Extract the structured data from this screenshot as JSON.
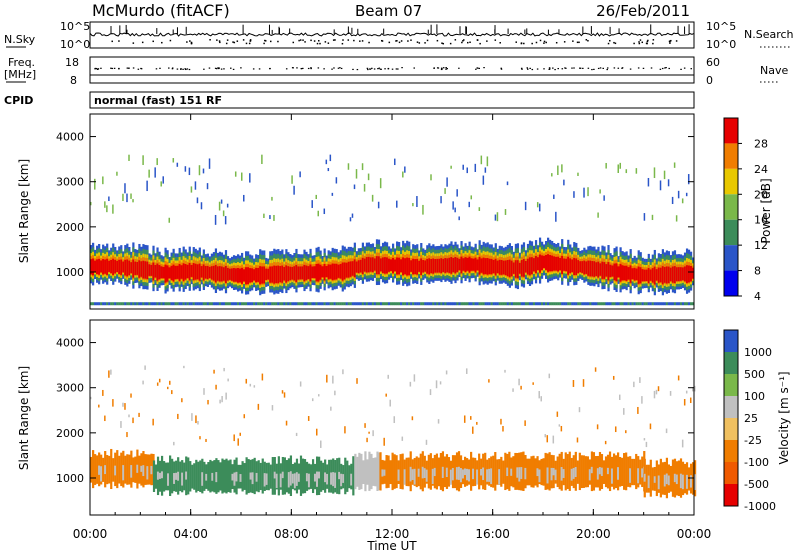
{
  "header": {
    "station": "McMurdo (fitACF)",
    "beam": "Beam 07",
    "date": "26/Feb/2011"
  },
  "top_panels": {
    "nsky_label": "N.Sky",
    "nsearch_label": "N.Search",
    "nsky_ticks": [
      "10^5",
      "10^0"
    ],
    "nsearch_ticks": [
      "10^5",
      "10^0"
    ],
    "freq_label_1": "Freq.",
    "freq_label_2": "[MHz]",
    "freq_ticks": [
      "18",
      "8"
    ],
    "nave_label": "Nave",
    "nave_ticks": [
      "60",
      "0"
    ],
    "cpid_label": "CPID",
    "cpid_value": "normal (fast) 151 RF"
  },
  "chart_data": [
    {
      "type": "heatmap",
      "name": "power",
      "ylabel": "Slant Range [km]",
      "ylim": [
        180,
        4500
      ],
      "y_ticks": [
        "1000",
        "2000",
        "3000",
        "4000"
      ],
      "colorbar_label": "Power [dB]",
      "colorbar_ticks": [
        "28",
        "24",
        "20",
        "16",
        "12",
        "8",
        "4"
      ],
      "colors": [
        "#0000ee",
        "#2a55c8",
        "#3c8c5a",
        "#7ab84a",
        "#e8c800",
        "#f07d00",
        "#e60000"
      ],
      "band_center_km": [
        [
          "00:00",
          1150
        ],
        [
          "01:00",
          1150
        ],
        [
          "02:00",
          1100
        ],
        [
          "03:00",
          1000
        ],
        [
          "04:00",
          1050
        ],
        [
          "06:00",
          950
        ],
        [
          "08:00",
          1000
        ],
        [
          "10:00",
          1050
        ],
        [
          "11:00",
          1200
        ],
        [
          "13:00",
          1150
        ],
        [
          "15:00",
          1200
        ],
        [
          "17:00",
          1100
        ],
        [
          "18:00",
          1250
        ],
        [
          "20:00",
          1100
        ],
        [
          "22:00",
          950
        ],
        [
          "24:00",
          1000
        ]
      ]
    },
    {
      "type": "heatmap",
      "name": "velocity",
      "xlabel": "Time UT",
      "ylabel": "Slant Range [km]",
      "ylim": [
        180,
        4500
      ],
      "y_ticks": [
        "1000",
        "2000",
        "3000",
        "4000"
      ],
      "x_ticks": [
        "00:00",
        "04:00",
        "08:00",
        "12:00",
        "16:00",
        "20:00",
        "00:00"
      ],
      "colorbar_label": "Velocity [m s⁻¹]",
      "colorbar_ticks": [
        "1000",
        "500",
        "100",
        "25",
        "-25",
        "-100",
        "-500",
        "-1000"
      ],
      "colors": [
        "#2a55c8",
        "#3c8c5a",
        "#7ab84a",
        "#c0c0c0",
        "#f0c060",
        "#f07d00",
        "#f05a00",
        "#e60000"
      ],
      "segments": [
        {
          "from": "00:00",
          "to": "02:30",
          "velocity_class": "-100",
          "center_km": 1150
        },
        {
          "from": "02:30",
          "to": "10:30",
          "velocity_class": "500",
          "center_km": 1000
        },
        {
          "from": "10:30",
          "to": "11:30",
          "velocity_class": "25",
          "center_km": 1100
        },
        {
          "from": "11:30",
          "to": "22:00",
          "velocity_class": "-100",
          "center_km": 1100
        },
        {
          "from": "22:00",
          "to": "24:00",
          "velocity_class": "-100",
          "center_km": 950
        }
      ]
    }
  ]
}
